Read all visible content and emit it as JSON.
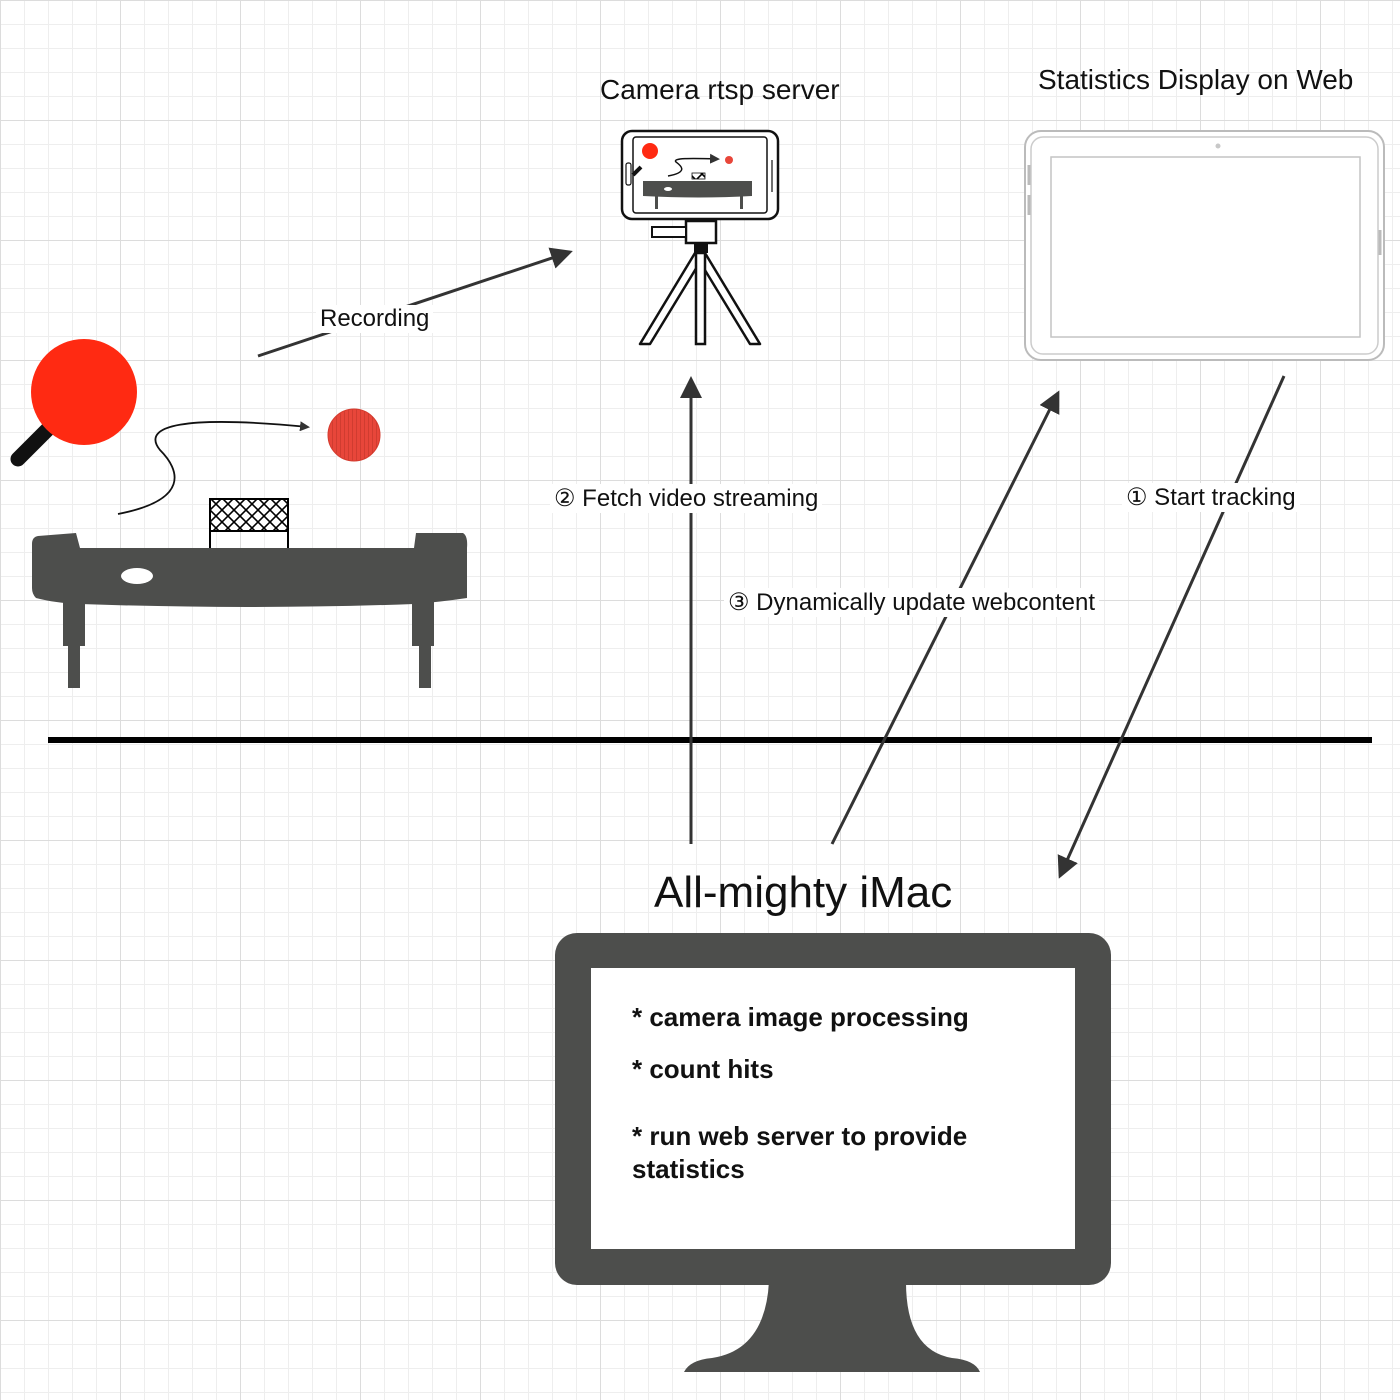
{
  "diagram": {
    "camera": {
      "title": "Camera rtsp server"
    },
    "display": {
      "title": "Statistics Display on Web"
    },
    "imac": {
      "title": "All-mighty iMac",
      "tasks": [
        "* camera image processing",
        "* count hits",
        "* run web server to provide statistics"
      ]
    },
    "edges": {
      "recording": "Recording",
      "fetch_video": "② Fetch video streaming",
      "update_web": "③ Dynamically update webcontent",
      "start_tracking": "① Start tracking"
    },
    "colors": {
      "paddle": "#ff2a12",
      "ball": "#e8463a",
      "device": "#4d4e4c",
      "line": "#000000",
      "grid_major": "#dcdcdc",
      "grid_minor": "#eeeeee"
    }
  }
}
